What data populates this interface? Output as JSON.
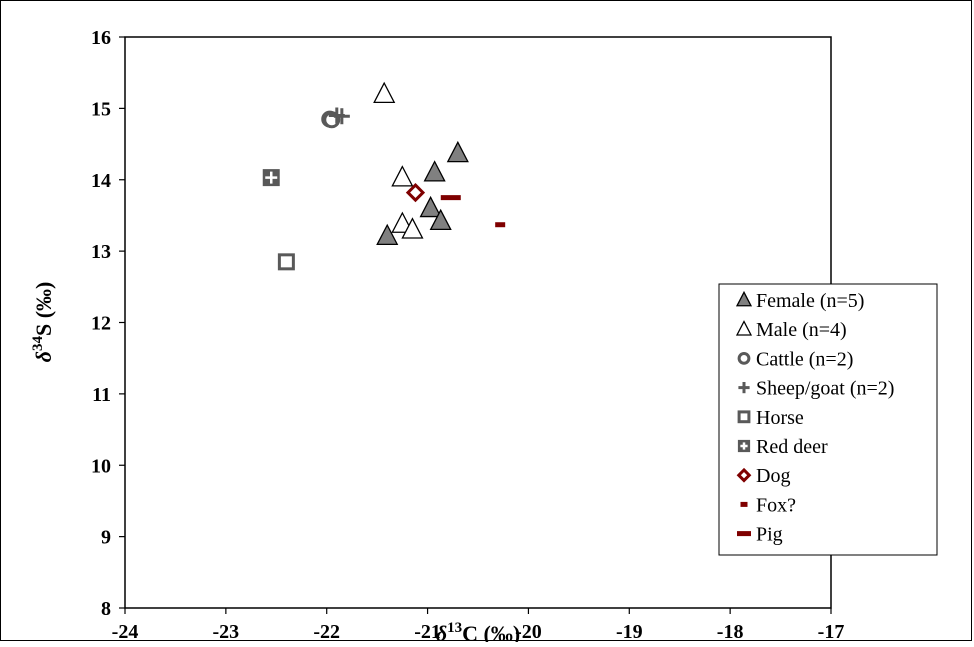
{
  "chart_data": {
    "type": "scatter",
    "title": "",
    "xlabel": {
      "symbol": "δ",
      "sup": "13",
      "text": "C (‰)"
    },
    "ylabel": {
      "symbol": "δ",
      "sup": "34",
      "text": "S (‰)"
    },
    "xlim": [
      -24,
      -17
    ],
    "ylim": [
      8,
      16
    ],
    "xticks": [
      -24,
      -23,
      -22,
      -21,
      -20,
      -19,
      -18,
      -17
    ],
    "yticks": [
      8,
      9,
      10,
      11,
      12,
      13,
      14,
      15,
      16
    ],
    "grid": false,
    "legend_position": "bottom-right",
    "series": [
      {
        "name": "Female (n=5)",
        "marker": "triangle-filled",
        "color": "#808080",
        "points": [
          [
            -20.7,
            14.37
          ],
          [
            -20.93,
            14.1
          ],
          [
            -20.97,
            13.6
          ],
          [
            -20.87,
            13.42
          ],
          [
            -21.4,
            13.21
          ]
        ]
      },
      {
        "name": "Male (n=4)",
        "marker": "triangle-open",
        "color": "#000000",
        "points": [
          [
            -21.43,
            15.2
          ],
          [
            -21.25,
            14.03
          ],
          [
            -21.25,
            13.38
          ],
          [
            -21.15,
            13.3
          ]
        ]
      },
      {
        "name": "Cattle (n=2)",
        "marker": "circle-open",
        "color": "#595959",
        "points": [
          [
            -21.97,
            14.85
          ],
          [
            -21.95,
            14.84
          ]
        ]
      },
      {
        "name": "Sheep/goat (n=2)",
        "marker": "plus",
        "color": "#595959",
        "points": [
          [
            -21.9,
            14.9
          ],
          [
            -21.85,
            14.89
          ]
        ]
      },
      {
        "name": "Horse",
        "marker": "square-open",
        "color": "#595959",
        "points": [
          [
            -22.4,
            12.85
          ]
        ]
      },
      {
        "name": "Red deer",
        "marker": "square-cross",
        "color": "#595959",
        "points": [
          [
            -22.55,
            14.03
          ]
        ]
      },
      {
        "name": "Dog",
        "marker": "diamond-open",
        "color": "#7f0000",
        "points": [
          [
            -21.12,
            13.82
          ]
        ]
      },
      {
        "name": "Fox?",
        "marker": "dash-short",
        "color": "#7f0000",
        "points": [
          [
            -20.28,
            13.37
          ]
        ]
      },
      {
        "name": "Pig",
        "marker": "dash-long",
        "color": "#7f0000",
        "points": [
          [
            -20.77,
            13.75
          ]
        ]
      }
    ]
  }
}
